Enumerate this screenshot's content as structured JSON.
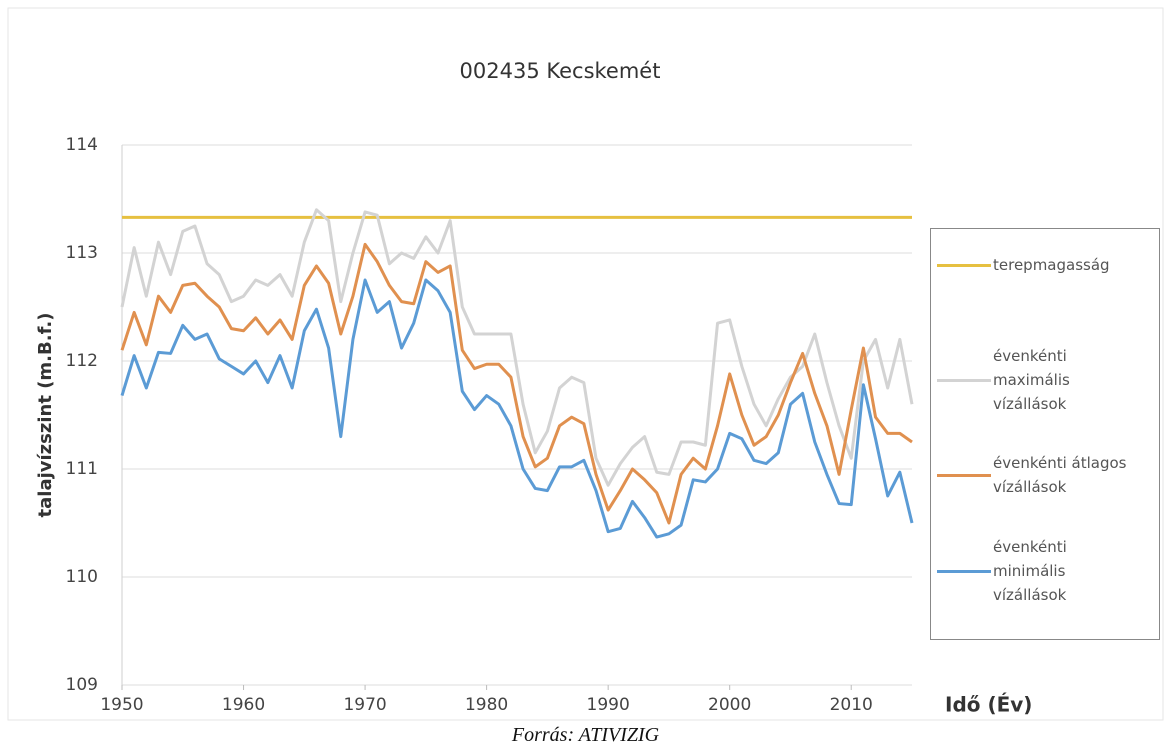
{
  "chart_data": {
    "type": "line",
    "title": "002435 Kecskemét",
    "y_label": "talajvízszint (m.B.f.)",
    "x_label": "Idő (Év)",
    "caption": "Forrás: ATIVIZIG",
    "x": [
      1950,
      1951,
      1952,
      1953,
      1954,
      1955,
      1956,
      1957,
      1958,
      1959,
      1960,
      1961,
      1962,
      1963,
      1964,
      1965,
      1966,
      1967,
      1968,
      1969,
      1970,
      1971,
      1972,
      1973,
      1974,
      1975,
      1976,
      1977,
      1978,
      1979,
      1980,
      1981,
      1982,
      1983,
      1984,
      1985,
      1986,
      1987,
      1988,
      1989,
      1990,
      1991,
      1992,
      1993,
      1994,
      1995,
      1996,
      1997,
      1998,
      1999,
      2000,
      2001,
      2002,
      2003,
      2004,
      2005,
      2006,
      2007,
      2008,
      2009,
      2010,
      2011,
      2012,
      2013,
      2014,
      2015
    ],
    "xlim": [
      1950,
      2015
    ],
    "xticks": [
      1950,
      1960,
      1970,
      1980,
      1990,
      2000,
      2010
    ],
    "ylim": [
      109,
      114
    ],
    "yticks": [
      109,
      110,
      111,
      112,
      113,
      114
    ],
    "grid": true,
    "legend": "right",
    "series": [
      {
        "name": "terepmagasság",
        "color": "#e6c040",
        "values": [
          113.33,
          113.33,
          113.33,
          113.33,
          113.33,
          113.33,
          113.33,
          113.33,
          113.33,
          113.33,
          113.33,
          113.33,
          113.33,
          113.33,
          113.33,
          113.33,
          113.33,
          113.33,
          113.33,
          113.33,
          113.33,
          113.33,
          113.33,
          113.33,
          113.33,
          113.33,
          113.33,
          113.33,
          113.33,
          113.33,
          113.33,
          113.33,
          113.33,
          113.33,
          113.33,
          113.33,
          113.33,
          113.33,
          113.33,
          113.33,
          113.33,
          113.33,
          113.33,
          113.33,
          113.33,
          113.33,
          113.33,
          113.33,
          113.33,
          113.33,
          113.33,
          113.33,
          113.33,
          113.33,
          113.33,
          113.33,
          113.33,
          113.33,
          113.33,
          113.33,
          113.33,
          113.33,
          113.33,
          113.33,
          113.33,
          113.33
        ]
      },
      {
        "name": "évenkénti maximális vízállások",
        "color": "#d3d3d3",
        "values": [
          112.5,
          113.05,
          112.6,
          113.1,
          112.8,
          113.2,
          113.25,
          112.9,
          112.8,
          112.55,
          112.6,
          112.75,
          112.7,
          112.8,
          112.6,
          113.1,
          113.4,
          113.3,
          112.55,
          113.0,
          113.38,
          113.35,
          112.9,
          113.0,
          112.95,
          113.15,
          113.0,
          113.3,
          112.5,
          112.25,
          112.25,
          112.25,
          112.25,
          111.6,
          111.15,
          111.35,
          111.75,
          111.85,
          111.8,
          111.1,
          110.85,
          111.05,
          111.2,
          111.3,
          110.97,
          110.95,
          111.25,
          111.25,
          111.22,
          112.35,
          112.38,
          111.95,
          111.6,
          111.4,
          111.65,
          111.85,
          111.95,
          112.25,
          111.8,
          111.4,
          111.1,
          112.0,
          112.2,
          111.75,
          112.2,
          111.6
        ]
      },
      {
        "name": "évenkénti átlagos vízállások",
        "color": "#e0904f",
        "values": [
          112.1,
          112.45,
          112.15,
          112.6,
          112.45,
          112.7,
          112.72,
          112.6,
          112.5,
          112.3,
          112.28,
          112.4,
          112.25,
          112.38,
          112.2,
          112.7,
          112.88,
          112.72,
          112.25,
          112.6,
          113.08,
          112.92,
          112.7,
          112.55,
          112.53,
          112.92,
          112.82,
          112.88,
          112.1,
          111.93,
          111.97,
          111.97,
          111.85,
          111.3,
          111.02,
          111.1,
          111.4,
          111.48,
          111.42,
          110.95,
          110.62,
          110.8,
          111.0,
          110.9,
          110.78,
          110.5,
          110.95,
          111.1,
          111.0,
          111.4,
          111.88,
          111.5,
          111.22,
          111.3,
          111.5,
          111.8,
          112.07,
          111.7,
          111.4,
          110.95,
          111.55,
          112.12,
          111.48,
          111.33,
          111.33,
          111.25
        ]
      },
      {
        "name": "évenkénti minimális vízállások",
        "color": "#5b9bd5",
        "values": [
          111.68,
          112.05,
          111.75,
          112.08,
          112.07,
          112.33,
          112.2,
          112.25,
          112.02,
          111.95,
          111.88,
          112.0,
          111.8,
          112.05,
          111.75,
          112.28,
          112.48,
          112.12,
          111.3,
          112.2,
          112.75,
          112.45,
          112.55,
          112.12,
          112.35,
          112.75,
          112.65,
          112.45,
          111.72,
          111.55,
          111.68,
          111.6,
          111.4,
          111.0,
          110.82,
          110.8,
          111.02,
          111.02,
          111.08,
          110.8,
          110.42,
          110.45,
          110.7,
          110.55,
          110.37,
          110.4,
          110.48,
          110.9,
          110.88,
          111.0,
          111.33,
          111.28,
          111.08,
          111.05,
          111.15,
          111.6,
          111.7,
          111.25,
          110.95,
          110.68,
          110.67,
          111.78,
          111.28,
          110.75,
          110.97,
          110.5
        ]
      }
    ]
  }
}
